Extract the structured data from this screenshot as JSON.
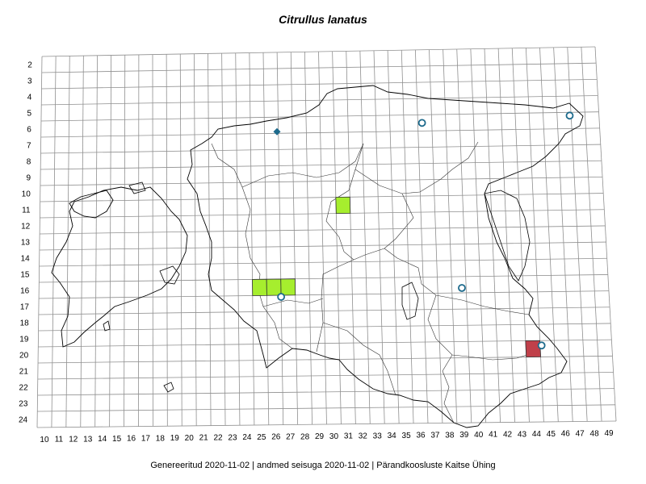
{
  "title": "Citrullus lanatus",
  "footer": "Genereeritud 2020-11-02  |  andmed seisuga 2020-11-02  |  Pärandkoosluste Kaitse Ühing",
  "grid": {
    "rows": [
      "2",
      "3",
      "4",
      "5",
      "6",
      "7",
      "8",
      "9",
      "10",
      "11",
      "12",
      "13",
      "14",
      "15",
      "16",
      "17",
      "18",
      "19",
      "20",
      "21",
      "22",
      "23",
      "24"
    ],
    "cols": [
      "10",
      "11",
      "12",
      "13",
      "14",
      "15",
      "16",
      "17",
      "18",
      "19",
      "20",
      "21",
      "22",
      "23",
      "24",
      "25",
      "26",
      "27",
      "28",
      "29",
      "30",
      "31",
      "32",
      "33",
      "34",
      "35",
      "36",
      "37",
      "38",
      "39",
      "40",
      "41",
      "42",
      "43",
      "44",
      "45",
      "46",
      "47",
      "48",
      "49"
    ]
  },
  "colors": {
    "green": "#a6ee2e",
    "red": "#c0404a",
    "marker": "#1d6a8c",
    "grid": "#8f8f8f"
  },
  "records": {
    "green_squares": [
      {
        "col": 31,
        "row": 11
      },
      {
        "col": 25,
        "row": 16
      },
      {
        "col": 26,
        "row": 16
      },
      {
        "col": 27,
        "row": 16
      }
    ],
    "red_squares": [
      {
        "col": 44,
        "row": 20
      }
    ],
    "circles": [
      {
        "col": 36.8,
        "row": 6
      },
      {
        "col": 47.4,
        "row": 5.7
      },
      {
        "col": 39.2,
        "row": 16.2
      },
      {
        "col": 26.5,
        "row": 16.6
      },
      {
        "col": 44.6,
        "row": 19.8
      }
    ],
    "diamonds": [
      {
        "col": 26.4,
        "row": 6.4
      }
    ]
  }
}
